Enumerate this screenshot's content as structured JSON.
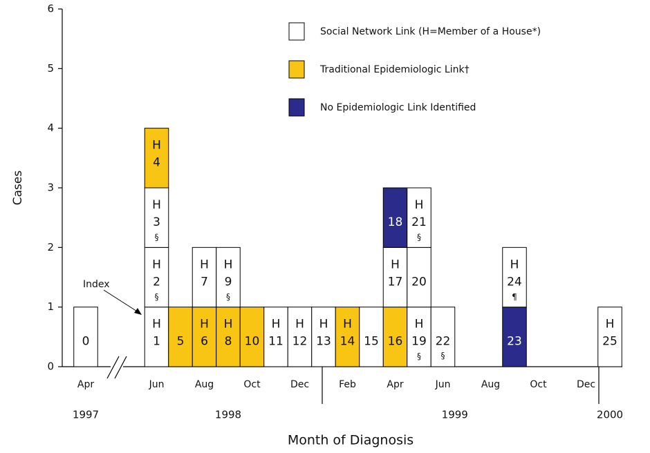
{
  "chart_data": {
    "type": "epicurve",
    "y_label": "Cases",
    "x_label": "Month of Diagnosis",
    "ylim": [
      0,
      6
    ],
    "yticks": [
      0,
      1,
      2,
      3,
      4,
      5,
      6
    ],
    "categories": [
      "Apr",
      "Jun",
      null,
      "Aug",
      null,
      "Oct",
      null,
      "Dec",
      null,
      "Feb",
      null,
      "Apr",
      null,
      "Jun",
      null,
      "Aug",
      null,
      "Oct",
      null,
      "Dec",
      null
    ],
    "years": [
      {
        "label": "1997",
        "first": 0,
        "last": 0
      },
      {
        "label": "1998",
        "first": 1,
        "last": 7
      },
      {
        "label": "1999",
        "first": 8,
        "last": 19
      },
      {
        "label": "2000",
        "first": 20,
        "last": 20
      }
    ],
    "links": [
      {
        "name": "Social Network Link (H=Member of a House*)",
        "color": "#ffffff",
        "text_color": "#111111"
      },
      {
        "name": "Traditional Epidemiologic Link†",
        "color": "#f8c514",
        "text_color": "#111111"
      },
      {
        "name": "No Epidemiologic Link Identified",
        "color": "#2b2b8c",
        "text_color": "#ffffff"
      }
    ],
    "cases": [
      {
        "category": 0,
        "link": 0,
        "value": 1,
        "lines": [
          "0"
        ]
      },
      {
        "category": 1,
        "link": 0,
        "value": 1,
        "lines": [
          "H",
          "1"
        ]
      },
      {
        "category": 1,
        "link": 0,
        "value": 1,
        "lines": [
          "H",
          "2"
        ],
        "note": "§"
      },
      {
        "category": 1,
        "link": 0,
        "value": 1,
        "lines": [
          "H",
          "3"
        ],
        "note": "§"
      },
      {
        "category": 1,
        "link": 1,
        "value": 1,
        "lines": [
          "H",
          "4"
        ]
      },
      {
        "category": 2,
        "link": 1,
        "value": 1,
        "lines": [
          "5"
        ]
      },
      {
        "category": 3,
        "link": 1,
        "value": 1,
        "lines": [
          "H",
          "6"
        ]
      },
      {
        "category": 3,
        "link": 0,
        "value": 1,
        "lines": [
          "H",
          "7"
        ]
      },
      {
        "category": 4,
        "link": 1,
        "value": 1,
        "lines": [
          "H",
          "8"
        ]
      },
      {
        "category": 4,
        "link": 0,
        "value": 1,
        "lines": [
          "H",
          "9"
        ],
        "note": "§"
      },
      {
        "category": 5,
        "link": 1,
        "value": 1,
        "lines": [
          "10"
        ]
      },
      {
        "category": 6,
        "link": 0,
        "value": 1,
        "lines": [
          "H",
          "11"
        ]
      },
      {
        "category": 7,
        "link": 0,
        "value": 1,
        "lines": [
          "H",
          "12"
        ]
      },
      {
        "category": 8,
        "link": 0,
        "value": 1,
        "lines": [
          "H",
          "13"
        ]
      },
      {
        "category": 9,
        "link": 1,
        "value": 1,
        "lines": [
          "H",
          "14"
        ]
      },
      {
        "category": 10,
        "link": 0,
        "value": 1,
        "lines": [
          "15"
        ]
      },
      {
        "category": 11,
        "link": 1,
        "value": 1,
        "lines": [
          "16"
        ]
      },
      {
        "category": 11,
        "link": 0,
        "value": 1,
        "lines": [
          "H",
          "17"
        ]
      },
      {
        "category": 11,
        "link": 2,
        "value": 1,
        "lines": [
          "18"
        ]
      },
      {
        "category": 12,
        "link": 0,
        "value": 1,
        "lines": [
          "H",
          "19"
        ],
        "note": "§"
      },
      {
        "category": 12,
        "link": 0,
        "value": 1,
        "lines": [
          "20"
        ]
      },
      {
        "category": 12,
        "link": 0,
        "value": 1,
        "lines": [
          "H",
          "21"
        ],
        "note": "§"
      },
      {
        "category": 13,
        "link": 0,
        "value": 1,
        "lines": [
          "22"
        ],
        "note": "§"
      },
      {
        "category": 16,
        "link": 2,
        "value": 1,
        "lines": [
          "23"
        ]
      },
      {
        "category": 16,
        "link": 0,
        "value": 1,
        "lines": [
          "H",
          "24"
        ],
        "note": "¶"
      },
      {
        "category": 20,
        "link": 0,
        "value": 1,
        "lines": [
          "H",
          "25"
        ]
      }
    ],
    "annotations": [
      {
        "text": "Index"
      }
    ]
  }
}
